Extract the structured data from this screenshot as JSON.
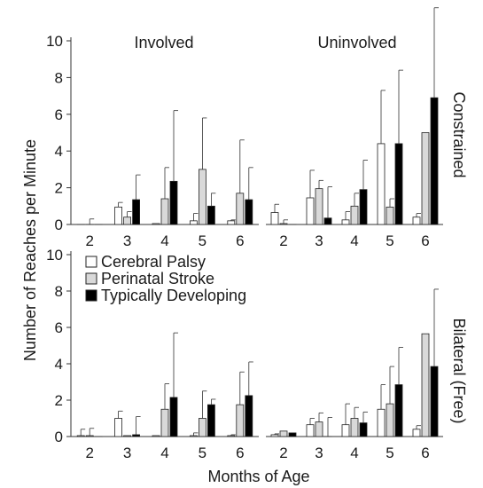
{
  "chart_data": {
    "type": "bar",
    "layout": "2x2 panel grid",
    "ylabel": "Number of Reaches per Minute",
    "xlabel": "Months of Age",
    "ylim": [
      0,
      10
    ],
    "yticks": [
      0,
      2,
      4,
      6,
      8,
      10
    ],
    "categories": [
      "2",
      "3",
      "4",
      "5",
      "6"
    ],
    "column_titles": [
      "Involved",
      "Uninvolved"
    ],
    "row_titles": [
      "Constrained",
      "Bilateral (Free)"
    ],
    "legend": {
      "placement": "inside bottom-left panel, top-left",
      "entries": [
        {
          "label": "Cerebral Palsy",
          "color": "#ffffff"
        },
        {
          "label": "Perinatal Stroke",
          "color": "#d9d9d9"
        },
        {
          "label": "Typically Developing",
          "color": "#000000"
        }
      ]
    },
    "error_bars": "upper standard deviation",
    "panels": [
      {
        "row": 0,
        "col": 0,
        "column_title": "Involved",
        "series": [
          {
            "group": "Cerebral Palsy",
            "values": [
              0,
              0.95,
              0.05,
              0.2,
              0.2
            ],
            "error_upper": [
              0,
              1.2,
              0.05,
              0.6,
              0.25
            ]
          },
          {
            "group": "Perinatal Stroke",
            "values": [
              0,
              0.4,
              1.4,
              3.0,
              1.7
            ],
            "error_upper": [
              0.3,
              0.7,
              3.1,
              5.8,
              4.6
            ]
          },
          {
            "group": "Typically Developing",
            "values": [
              0,
              1.35,
              2.35,
              1.0,
              1.35
            ],
            "error_upper": [
              0,
              2.7,
              6.2,
              1.7,
              3.1
            ]
          }
        ]
      },
      {
        "row": 0,
        "col": 1,
        "column_title": "Uninvolved",
        "row_title": "Constrained",
        "series": [
          {
            "group": "Cerebral Palsy",
            "values": [
              0.65,
              1.45,
              0.25,
              4.4,
              0.4
            ],
            "error_upper": [
              1.1,
              2.95,
              0.7,
              7.3,
              0.6
            ]
          },
          {
            "group": "Perinatal Stroke",
            "values": [
              0.05,
              1.95,
              1.0,
              0.95,
              5.0
            ],
            "error_upper": [
              0.25,
              2.4,
              1.7,
              1.4,
              5.0
            ]
          },
          {
            "group": "Typically Developing",
            "values": [
              0,
              0.35,
              1.9,
              4.4,
              6.9
            ],
            "error_upper": [
              0,
              2.05,
              3.5,
              8.4,
              11.8
            ]
          }
        ]
      },
      {
        "row": 1,
        "col": 0,
        "series": [
          {
            "group": "Cerebral Palsy",
            "values": [
              0.05,
              1.0,
              0.05,
              0.05,
              0.05
            ],
            "error_upper": [
              0.4,
              1.4,
              0.05,
              0.2,
              0.1
            ]
          },
          {
            "group": "Perinatal Stroke",
            "values": [
              0.05,
              0.05,
              1.5,
              1.0,
              1.75
            ],
            "error_upper": [
              0.45,
              0.05,
              2.9,
              2.5,
              3.55
            ]
          },
          {
            "group": "Typically Developing",
            "values": [
              0,
              0.1,
              2.15,
              1.75,
              2.25
            ],
            "error_upper": [
              0,
              1.1,
              5.7,
              2.05,
              4.1
            ]
          }
        ]
      },
      {
        "row": 1,
        "col": 1,
        "row_title": "Bilateral (Free)",
        "series": [
          {
            "group": "Cerebral Palsy",
            "values": [
              0.1,
              0.65,
              0.65,
              1.5,
              0.4
            ],
            "error_upper": [
              0.15,
              1.0,
              1.8,
              2.85,
              0.6
            ]
          },
          {
            "group": "Perinatal Stroke",
            "values": [
              0.3,
              0.8,
              1.0,
              1.8,
              5.65
            ],
            "error_upper": [
              0.3,
              1.3,
              1.6,
              3.85,
              5.65
            ]
          },
          {
            "group": "Typically Developing",
            "values": [
              0.2,
              0.0,
              0.75,
              2.85,
              3.85
            ],
            "error_upper": [
              0.2,
              1.05,
              1.35,
              4.9,
              8.1
            ]
          }
        ]
      }
    ]
  }
}
